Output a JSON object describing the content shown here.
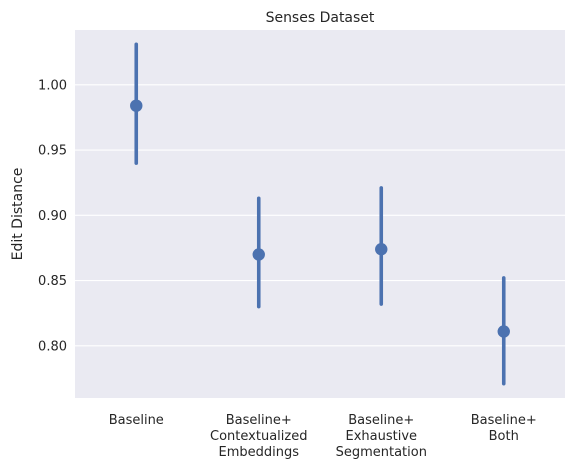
{
  "chart_data": {
    "type": "pointplot",
    "title": "Senses Dataset",
    "xlabel": "",
    "ylabel": "Edit Distance",
    "ylim": [
      0.76,
      1.042
    ],
    "yticks": [
      "0.80",
      "0.85",
      "0.90",
      "0.95",
      "1.00"
    ],
    "grid": true,
    "color": "#4c72b0",
    "background": "#eaeaf2",
    "categories": [
      [
        "Baseline"
      ],
      [
        "Baseline+",
        "Contextualized",
        "Embeddings"
      ],
      [
        "Baseline+",
        "Exhaustive",
        "Segmentation"
      ],
      [
        "Baseline+",
        "Both"
      ]
    ],
    "values": [
      0.984,
      0.87,
      0.874,
      0.811
    ],
    "ci_low": [
      0.94,
      0.83,
      0.832,
      0.771
    ],
    "ci_high": [
      1.031,
      0.913,
      0.921,
      0.852
    ]
  }
}
